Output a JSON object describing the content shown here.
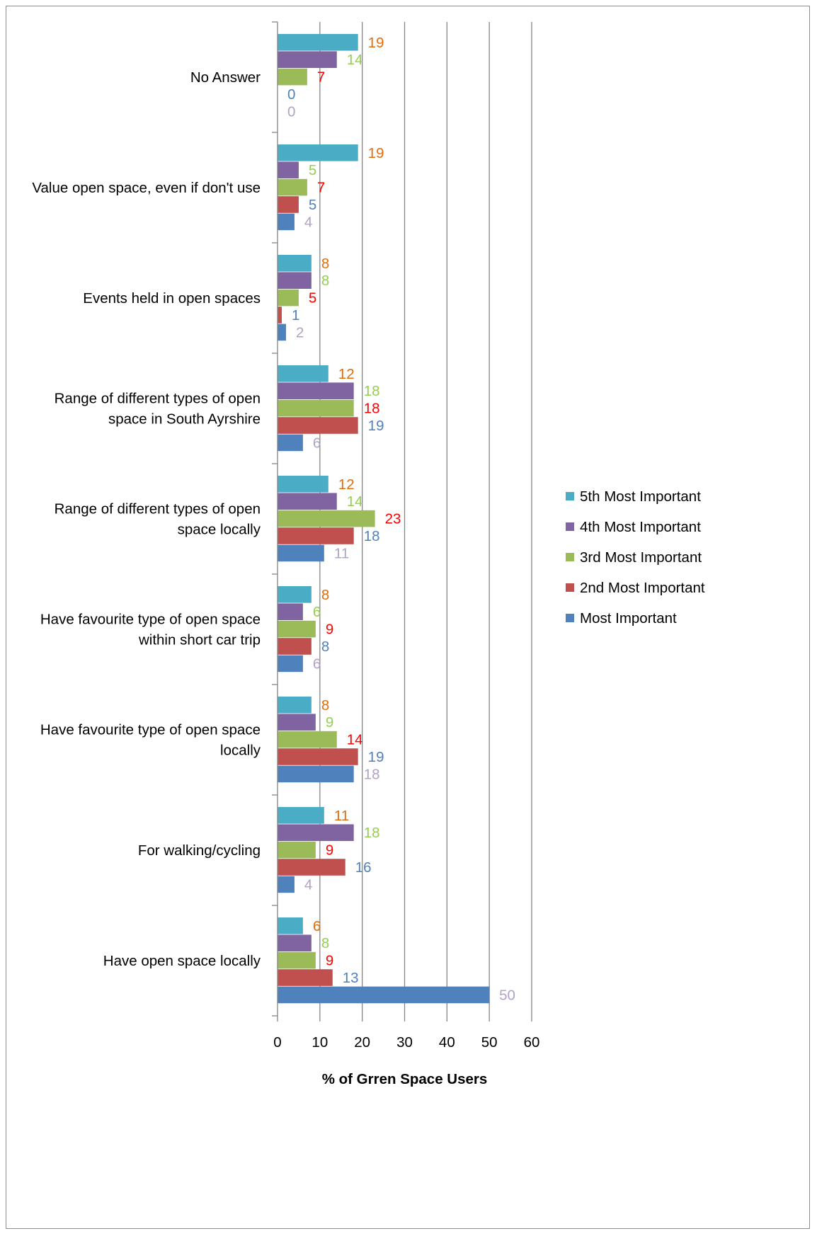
{
  "chart_data": {
    "type": "bar",
    "orientation": "horizontal",
    "title": "",
    "xlabel": "% of Grren Space Users",
    "ylabel": "",
    "xlim": [
      0,
      60
    ],
    "xticks": [
      "0",
      "10",
      "20",
      "30",
      "40",
      "50",
      "60"
    ],
    "grid": "vertical major gridlines",
    "legend_position": "right",
    "categories": [
      [
        "No Answer"
      ],
      [
        "Value open space, even if don't use"
      ],
      [
        "Events held in open spaces"
      ],
      [
        "Range of different types of open",
        "space in South Ayrshire"
      ],
      [
        "Range of different types of open",
        "space locally"
      ],
      [
        "Have favourite type of open space",
        "within short car trip"
      ],
      [
        "Have favourite type of open space",
        "locally"
      ],
      [
        "For walking/cycling"
      ],
      [
        "Have open space locally"
      ]
    ],
    "series": [
      {
        "name": "5th Most Important",
        "color": "#4bacc6",
        "label_color": "#e36c09",
        "values": [
          19,
          19,
          8,
          12,
          12,
          8,
          8,
          11,
          6
        ]
      },
      {
        "name": "4th Most Important",
        "color": "#8064a2",
        "label_color": "#92d050",
        "values": [
          14,
          5,
          8,
          18,
          14,
          6,
          9,
          18,
          8
        ]
      },
      {
        "name": "3rd Most Important",
        "color": "#9bbb59",
        "label_color": "#ff0000",
        "values": [
          7,
          7,
          5,
          18,
          23,
          9,
          14,
          9,
          9
        ]
      },
      {
        "name": "2nd Most Important",
        "color": "#c0504d",
        "label_color": "#4f81bd",
        "values": [
          0,
          5,
          1,
          19,
          18,
          8,
          19,
          16,
          13
        ]
      },
      {
        "name": "Most Important",
        "color": "#4f81bd",
        "label_color": "#b3a2c7",
        "values": [
          0,
          4,
          2,
          6,
          11,
          6,
          18,
          4,
          50
        ]
      }
    ],
    "legend_order": [
      "5th Most Important",
      "4th Most Important",
      "3rd Most Important",
      "2nd Most Important",
      "Most Important"
    ]
  }
}
